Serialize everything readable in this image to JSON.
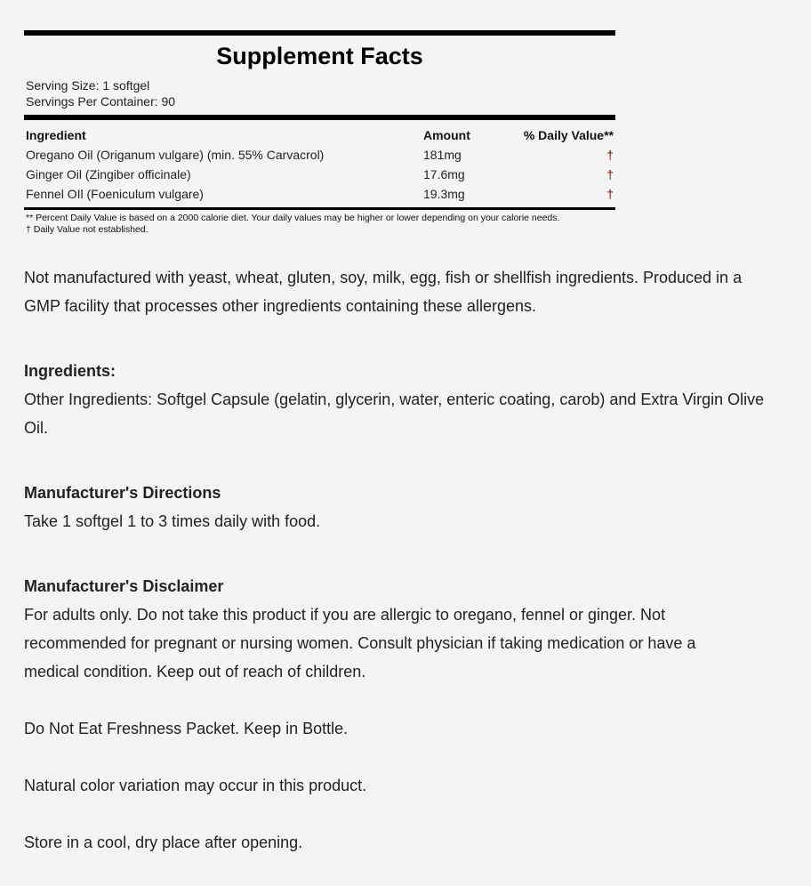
{
  "facts": {
    "title": "Supplement Facts",
    "serving_size": "Serving Size: 1 softgel",
    "servings_per_container": "Servings Per Container: 90",
    "headers": {
      "ingredient": "Ingredient",
      "amount": "Amount",
      "daily_value": "% Daily Value**"
    },
    "rows": [
      {
        "ingredient": "Oregano Oil (Origanum vulgare) (min. 55% Carvacrol)",
        "amount": "181mg",
        "daily_value": "†"
      },
      {
        "ingredient": "Ginger Oil (Zingiber officinale)",
        "amount": "17.6mg",
        "daily_value": "†"
      },
      {
        "ingredient": "Fennel OIl (Foeniculum vulgare)",
        "amount": "19.3mg",
        "daily_value": "†"
      }
    ],
    "footnote1": "** Percent Daily Value is based on a 2000 calorie diet. Your daily values may be higher or lower depending on your calorie needs.",
    "footnote2": "† Daily Value not established.",
    "dagger_color": "#8b0000"
  },
  "content": {
    "allergen_note": "Not manufactured with yeast, wheat, gluten, soy, milk, egg, fish or shellfish ingredients. Produced in a GMP facility that processes other ingredients containing these allergens.",
    "ingredients_heading": "Ingredients:",
    "ingredients_text": "Other Ingredients: Softgel Capsule (gelatin, glycerin, water, enteric coating, carob) and Extra Virgin Olive Oil.",
    "directions_heading": "Manufacturer's Directions",
    "directions_text": "Take 1 softgel 1 to 3 times daily with food.",
    "disclaimer_heading": "Manufacturer's Disclaimer",
    "disclaimer_text": "For adults only. Do not take this product if you are allergic to oregano, fennel or ginger. Not recommended for pregnant or nursing women. Consult physician if taking medication or have a medical condition. Keep out of reach of children.",
    "freshness_note": "Do Not Eat Freshness Packet. Keep in Bottle.",
    "color_note": "Natural color variation may occur in this product.",
    "storage_note": "Store in a cool, dry place after opening."
  }
}
